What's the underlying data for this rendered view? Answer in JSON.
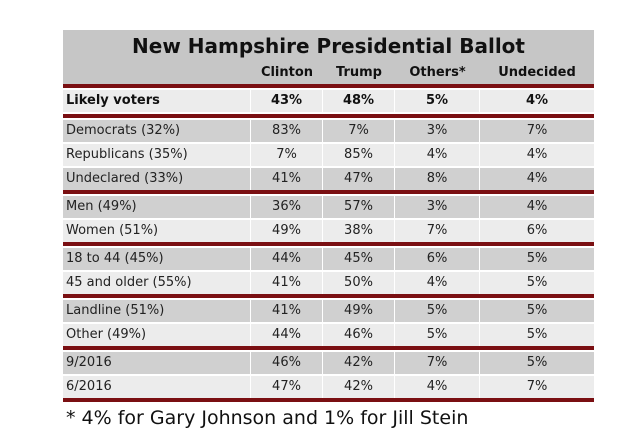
{
  "chart_data": {
    "type": "table",
    "title": "New Hampshire Presidential Ballot",
    "columns": [
      "",
      "Clinton",
      "Trump",
      "Others*",
      "Undecided"
    ],
    "headline": {
      "label": "Likely voters",
      "values": [
        "43%",
        "48%",
        "5%",
        "4%"
      ]
    },
    "groups": [
      {
        "rows": [
          {
            "label": "Democrats (32%)",
            "values": [
              "83%",
              "7%",
              "3%",
              "7%"
            ]
          },
          {
            "label": "Republicans (35%)",
            "values": [
              "7%",
              "85%",
              "4%",
              "4%"
            ]
          },
          {
            "label": "Undeclared (33%)",
            "values": [
              "41%",
              "47%",
              "8%",
              "4%"
            ]
          }
        ]
      },
      {
        "rows": [
          {
            "label": "Men (49%)",
            "values": [
              "36%",
              "57%",
              "3%",
              "4%"
            ]
          },
          {
            "label": "Women (51%)",
            "values": [
              "49%",
              "38%",
              "7%",
              "6%"
            ]
          }
        ]
      },
      {
        "rows": [
          {
            "label": "18 to 44 (45%)",
            "values": [
              "44%",
              "45%",
              "6%",
              "5%"
            ]
          },
          {
            "label": "45 and older (55%)",
            "values": [
              "41%",
              "50%",
              "4%",
              "5%"
            ]
          }
        ]
      },
      {
        "rows": [
          {
            "label": "Landline (51%)",
            "values": [
              "41%",
              "49%",
              "5%",
              "5%"
            ]
          },
          {
            "label": "Other (49%)",
            "values": [
              "44%",
              "46%",
              "5%",
              "5%"
            ]
          }
        ]
      },
      {
        "rows": [
          {
            "label": "9/2016",
            "values": [
              "46%",
              "42%",
              "7%",
              "5%"
            ]
          },
          {
            "label": "6/2016",
            "values": [
              "47%",
              "42%",
              "4%",
              "7%"
            ]
          }
        ]
      }
    ],
    "footnote": "* 4% for Gary Johnson and 1% for Jill Stein"
  },
  "colors": {
    "accent_rule": "#7a0f12",
    "header_bg": "#c6c6c6",
    "row_dark": "#d0d0d0",
    "row_light": "#ececec"
  }
}
